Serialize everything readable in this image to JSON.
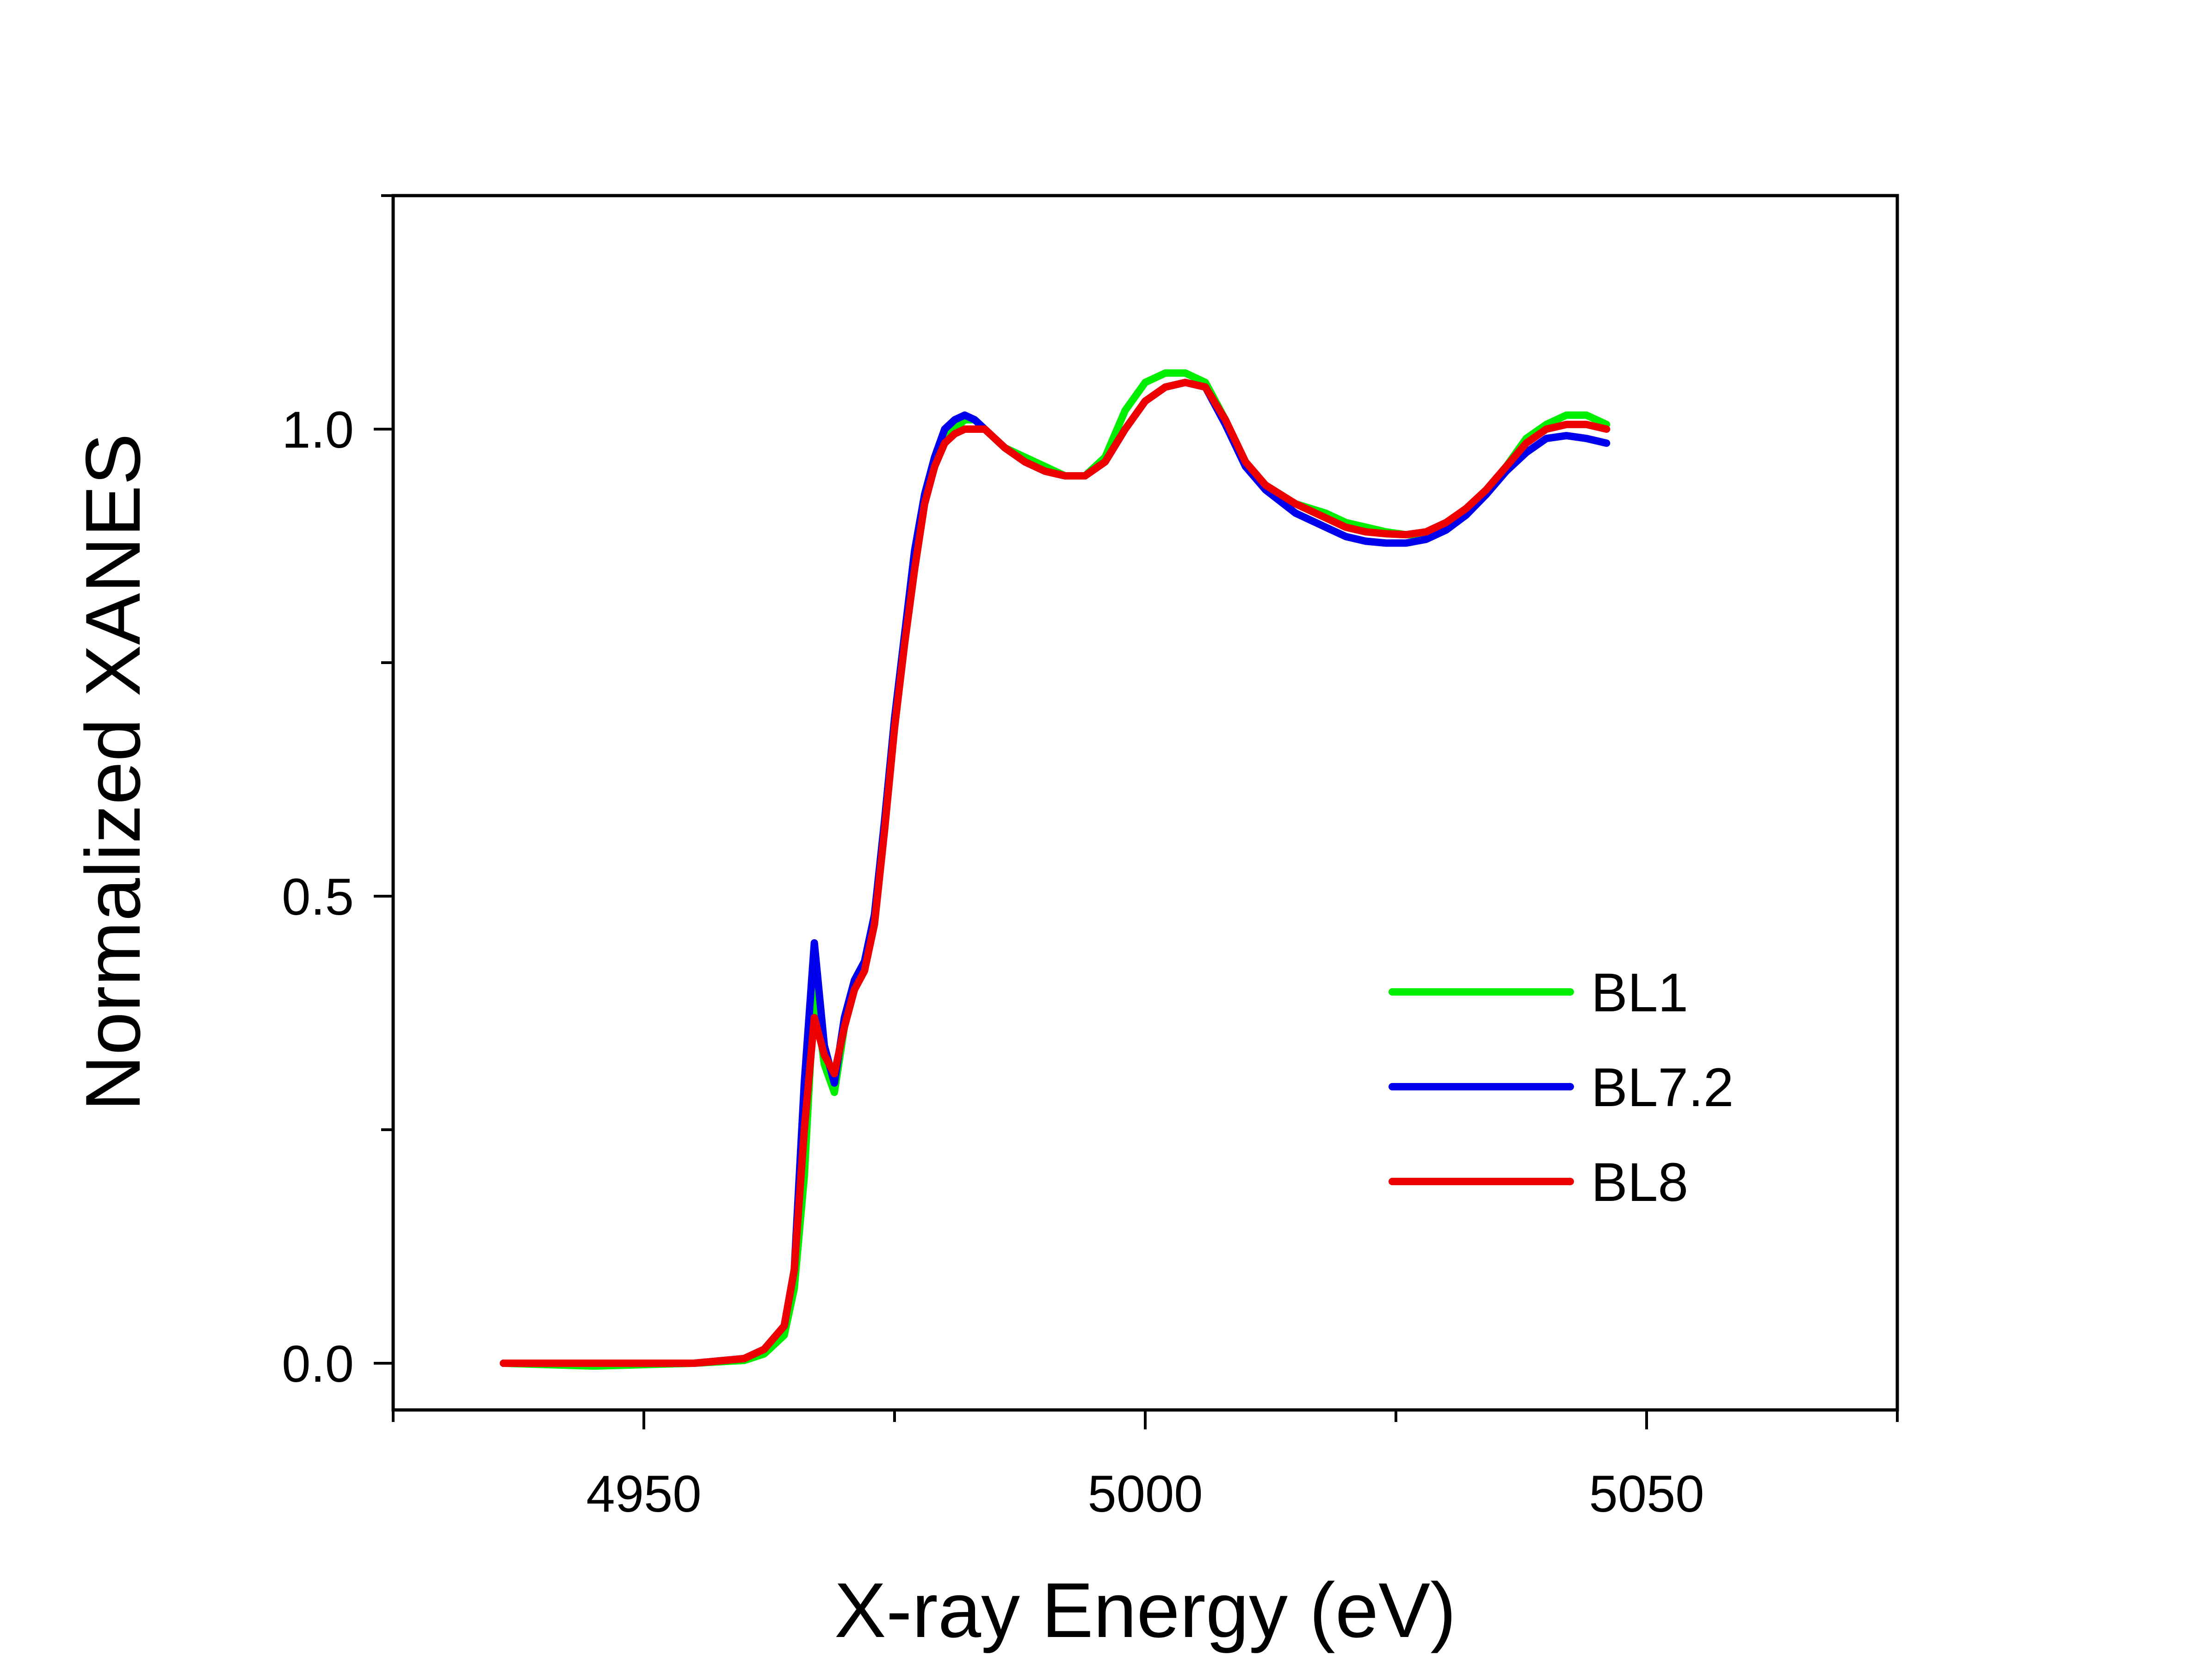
{
  "chart_data": {
    "type": "line",
    "title": "",
    "xlabel": "X-ray Energy (eV)",
    "ylabel": "Normalized XANES",
    "xlim": [
      4925,
      5075
    ],
    "ylim": [
      -0.05,
      1.25
    ],
    "xticks": [
      4950,
      5000,
      5050
    ],
    "xticks_minor": [
      4925,
      4975,
      5025,
      5075
    ],
    "yticks": [
      0.0,
      0.5,
      1.0
    ],
    "yticks_minor": [
      0.25,
      0.75,
      1.25
    ],
    "xtick_labels": [
      "4950",
      "5000",
      "5050"
    ],
    "ytick_labels": [
      "0.0",
      "0.5",
      "1.0"
    ],
    "grid": false,
    "legend_position": "lower-right",
    "series": [
      {
        "name": "BL1",
        "color": "#00ee00",
        "x": [
          4936,
          4945,
          4955,
          4960,
          4962,
          4964,
          4965,
          4966,
          4967,
          4968,
          4969,
          4970,
          4971,
          4972,
          4973,
          4974,
          4975,
          4976,
          4977,
          4978,
          4979,
          4980,
          4981,
          4982,
          4983,
          4984,
          4985,
          4986,
          4988,
          4990,
          4992,
          4994,
          4996,
          4998,
          5000,
          5002,
          5004,
          5006,
          5008,
          5010,
          5012,
          5015,
          5018,
          5020,
          5022,
          5024,
          5026,
          5028,
          5030,
          5032,
          5034,
          5036,
          5038,
          5040,
          5042,
          5044,
          5046
        ],
        "y": [
          0.0,
          -0.003,
          0.0,
          0.003,
          0.01,
          0.03,
          0.08,
          0.2,
          0.4,
          0.32,
          0.29,
          0.36,
          0.41,
          0.43,
          0.48,
          0.58,
          0.69,
          0.78,
          0.86,
          0.93,
          0.97,
          0.99,
          1.0,
          1.01,
          1.01,
          1.0,
          0.99,
          0.98,
          0.97,
          0.96,
          0.95,
          0.95,
          0.97,
          1.02,
          1.05,
          1.06,
          1.06,
          1.05,
          1.01,
          0.96,
          0.94,
          0.92,
          0.91,
          0.9,
          0.895,
          0.89,
          0.887,
          0.887,
          0.895,
          0.91,
          0.93,
          0.96,
          0.99,
          1.005,
          1.015,
          1.015,
          1.005
        ]
      },
      {
        "name": "BL7.2",
        "color": "#0000ee",
        "x": [
          4936,
          4945,
          4955,
          4960,
          4962,
          4964,
          4965,
          4966,
          4967,
          4968,
          4969,
          4970,
          4971,
          4972,
          4973,
          4974,
          4975,
          4976,
          4977,
          4978,
          4979,
          4980,
          4981,
          4982,
          4983,
          4984,
          4985,
          4986,
          4988,
          4990,
          4992,
          4994,
          4996,
          4998,
          5000,
          5002,
          5004,
          5006,
          5008,
          5010,
          5012,
          5015,
          5018,
          5020,
          5022,
          5024,
          5026,
          5028,
          5030,
          5032,
          5034,
          5036,
          5038,
          5040,
          5042,
          5044,
          5046
        ],
        "y": [
          0.0,
          0.0,
          0.0,
          0.005,
          0.015,
          0.04,
          0.1,
          0.3,
          0.45,
          0.34,
          0.3,
          0.37,
          0.41,
          0.43,
          0.48,
          0.58,
          0.69,
          0.78,
          0.87,
          0.93,
          0.97,
          1.0,
          1.01,
          1.015,
          1.01,
          1.0,
          0.99,
          0.98,
          0.965,
          0.955,
          0.95,
          0.95,
          0.965,
          1.0,
          1.03,
          1.045,
          1.05,
          1.045,
          1.005,
          0.96,
          0.935,
          0.91,
          0.895,
          0.885,
          0.88,
          0.878,
          0.878,
          0.882,
          0.892,
          0.908,
          0.93,
          0.955,
          0.975,
          0.99,
          0.993,
          0.99,
          0.985
        ]
      },
      {
        "name": "BL8",
        "color": "#ee0000",
        "x": [
          4936,
          4945,
          4955,
          4960,
          4962,
          4964,
          4965,
          4966,
          4967,
          4968,
          4969,
          4970,
          4971,
          4972,
          4973,
          4974,
          4975,
          4976,
          4977,
          4978,
          4979,
          4980,
          4981,
          4982,
          4983,
          4984,
          4985,
          4986,
          4988,
          4990,
          4992,
          4994,
          4996,
          4998,
          5000,
          5002,
          5004,
          5006,
          5008,
          5010,
          5012,
          5015,
          5018,
          5020,
          5022,
          5024,
          5026,
          5028,
          5030,
          5032,
          5034,
          5036,
          5038,
          5040,
          5042,
          5044,
          5046
        ],
        "y": [
          0.0,
          0.0,
          0.0,
          0.005,
          0.015,
          0.04,
          0.1,
          0.25,
          0.37,
          0.33,
          0.31,
          0.36,
          0.4,
          0.42,
          0.47,
          0.57,
          0.68,
          0.77,
          0.85,
          0.92,
          0.96,
          0.985,
          0.995,
          1.0,
          1.0,
          1.0,
          0.99,
          0.98,
          0.965,
          0.955,
          0.95,
          0.95,
          0.965,
          1.0,
          1.03,
          1.045,
          1.05,
          1.045,
          1.01,
          0.965,
          0.94,
          0.92,
          0.905,
          0.895,
          0.89,
          0.888,
          0.887,
          0.89,
          0.9,
          0.915,
          0.935,
          0.96,
          0.985,
          1.0,
          1.005,
          1.005,
          1.0
        ]
      }
    ]
  }
}
